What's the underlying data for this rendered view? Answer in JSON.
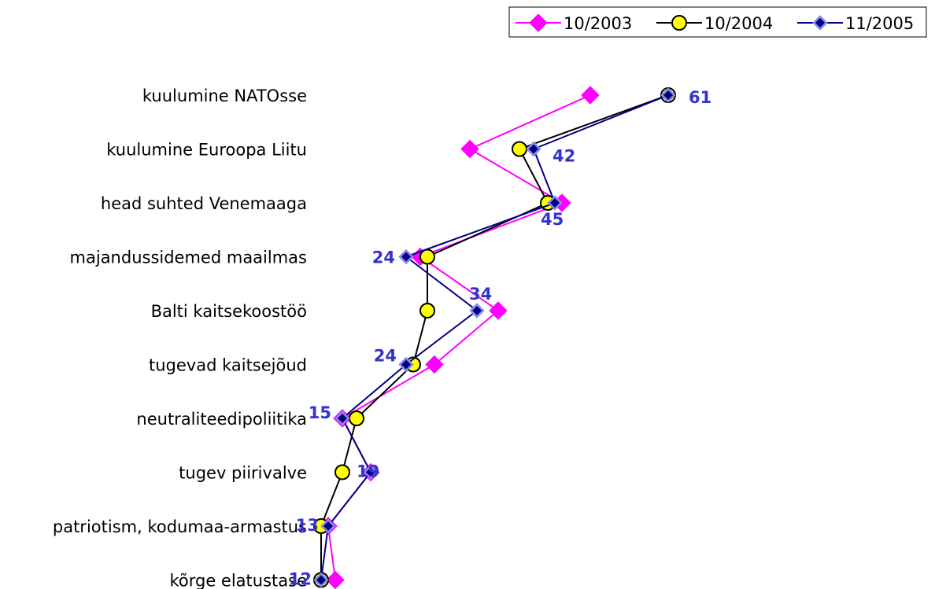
{
  "chart_data": {
    "type": "line",
    "orientation": "horizontal",
    "categories": [
      "kuulumine NATOsse",
      "kuulumine Euroopa Liitu",
      "head suhted Venemaaga",
      "majandussidemed maailmas",
      "Balti kaitsekoostöö",
      "tugevad kaitsejõud",
      "neutraliteedipoliitika",
      "tugev piirivalve",
      "patriotism, kodumaa-armastus",
      "kõrge elatustase"
    ],
    "series": [
      {
        "name": "10/2003",
        "color": "#ff00ff",
        "marker": "diamond",
        "values": [
          50,
          33,
          46,
          26,
          37,
          28,
          15,
          19,
          13,
          14
        ]
      },
      {
        "name": "10/2004",
        "color": "#000000",
        "marker": "circle-yellow",
        "values": [
          61,
          40,
          44,
          27,
          27,
          25,
          17,
          15,
          12,
          12
        ]
      },
      {
        "name": "11/2005",
        "color": "#000080",
        "marker": "diamond-small",
        "values": [
          61,
          42,
          45,
          24,
          34,
          24,
          15,
          19,
          13,
          12
        ]
      }
    ],
    "data_labels": [
      "61",
      "42",
      "45",
      "24",
      "34",
      "24",
      "15",
      "19",
      "13",
      "12"
    ],
    "xlim": [
      0,
      70
    ],
    "legend": "top-right",
    "grid": false
  }
}
